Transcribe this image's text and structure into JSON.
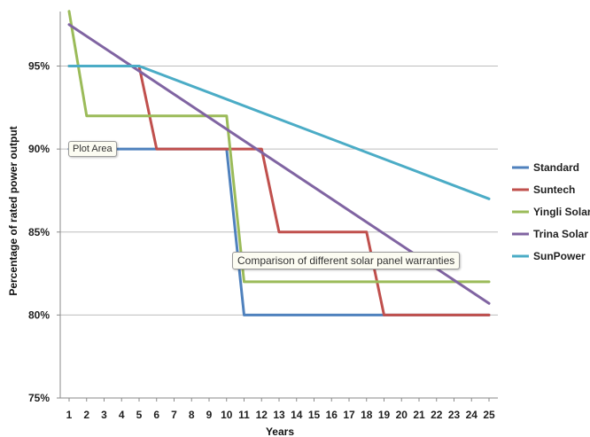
{
  "chart_data": {
    "type": "line",
    "title": "",
    "xlabel": "Years",
    "ylabel": "Percentage of rated power output",
    "ylim": [
      75,
      98.5
    ],
    "xlim": [
      1,
      25
    ],
    "y_ticks": [
      "75%",
      "80%",
      "85%",
      "90%",
      "95%"
    ],
    "y_tick_values": [
      75,
      80,
      85,
      90,
      95
    ],
    "x_ticks": [
      "1",
      "2",
      "3",
      "4",
      "5",
      "6",
      "7",
      "8",
      "9",
      "10",
      "11",
      "12",
      "13",
      "14",
      "15",
      "16",
      "17",
      "18",
      "19",
      "20",
      "21",
      "22",
      "23",
      "24",
      "25"
    ],
    "grid": true,
    "legend_position": "right",
    "series": [
      {
        "name": "Standard",
        "color": "#4f81bd",
        "points": [
          [
            1,
            90
          ],
          [
            5,
            90
          ],
          [
            10,
            90
          ],
          [
            11,
            80
          ],
          [
            25,
            80
          ]
        ]
      },
      {
        "name": "Suntech",
        "color": "#c0504d",
        "points": [
          [
            1,
            95
          ],
          [
            5,
            95
          ],
          [
            6,
            90
          ],
          [
            12,
            90
          ],
          [
            13,
            85
          ],
          [
            18,
            85
          ],
          [
            19,
            80
          ],
          [
            25,
            80
          ]
        ]
      },
      {
        "name": "Yingli Solar",
        "color": "#9bbb59",
        "points": [
          [
            1,
            98.3
          ],
          [
            2,
            92
          ],
          [
            10,
            92
          ],
          [
            11,
            82
          ],
          [
            25,
            82
          ]
        ]
      },
      {
        "name": "Trina Solar",
        "color": "#8064a2",
        "points": [
          [
            1,
            97.5
          ],
          [
            25,
            80.7
          ]
        ]
      },
      {
        "name": "SunPower",
        "color": "#4bacc6",
        "points": [
          [
            1,
            95
          ],
          [
            5,
            95
          ],
          [
            25,
            87
          ]
        ]
      }
    ]
  },
  "tooltips": {
    "plot_area": "Plot Area",
    "chart_title": "Comparison of different solar panel warranties"
  }
}
